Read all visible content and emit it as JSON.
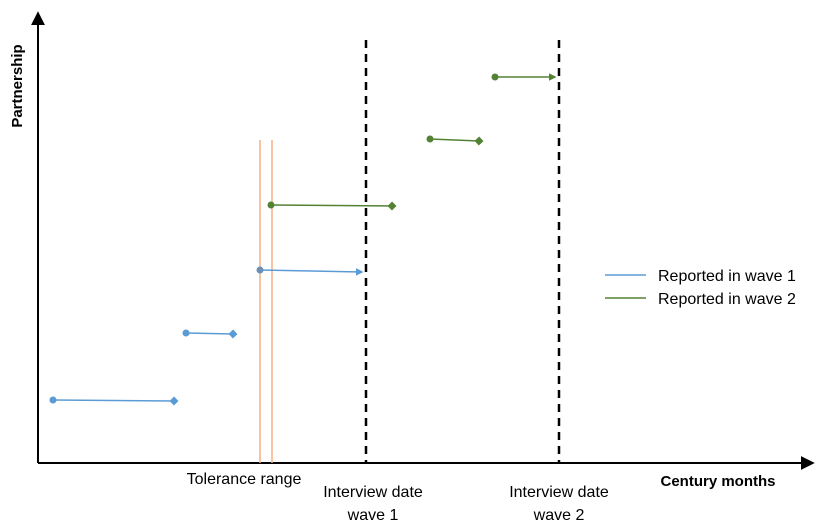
{
  "axes": {
    "y_label": "Partnership",
    "x_label": "Century months"
  },
  "annotations": {
    "tolerance": "Tolerance range",
    "interview1_line1": "Interview date",
    "interview1_line2": "wave 1",
    "interview2_line1": "Interview date",
    "interview2_line2": "wave 2"
  },
  "legend": [
    {
      "label": "Reported in wave 1",
      "color": "#5b9bd5"
    },
    {
      "label": "Reported in wave 2",
      "color": "#548235"
    }
  ],
  "colors": {
    "wave1": "#5b9bd5",
    "wave2": "#548235",
    "tolerance": "#f4b183",
    "axis": "#000000"
  }
}
